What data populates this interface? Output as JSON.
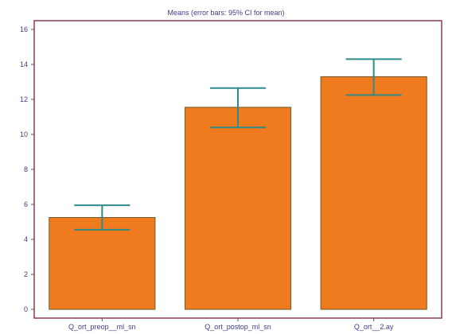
{
  "chart_data": {
    "type": "bar",
    "title": "Means  (error bars: 95% CI for mean)",
    "xlabel": "",
    "ylabel": "",
    "categories": [
      "Q_ort_preop__ml_sn",
      "Q_ort_postop_ml_sn",
      "Q_ort__2.ay"
    ],
    "values": [
      5.25,
      11.55,
      13.3
    ],
    "ci_low": [
      4.55,
      10.4,
      12.25
    ],
    "ci_high": [
      5.95,
      12.65,
      14.3
    ],
    "ylim": [
      -0.5,
      16.5
    ],
    "yticks": [
      0,
      2,
      4,
      6,
      8,
      10,
      12,
      14,
      16
    ],
    "grid": false,
    "colors": {
      "bar_fill": "#f07a1e",
      "bar_edge": "#6b5a2a",
      "error_bar": "#2e8b8b",
      "frame": "#7a1f3a",
      "text": "#3c3c8c",
      "axis": "#555555"
    }
  }
}
